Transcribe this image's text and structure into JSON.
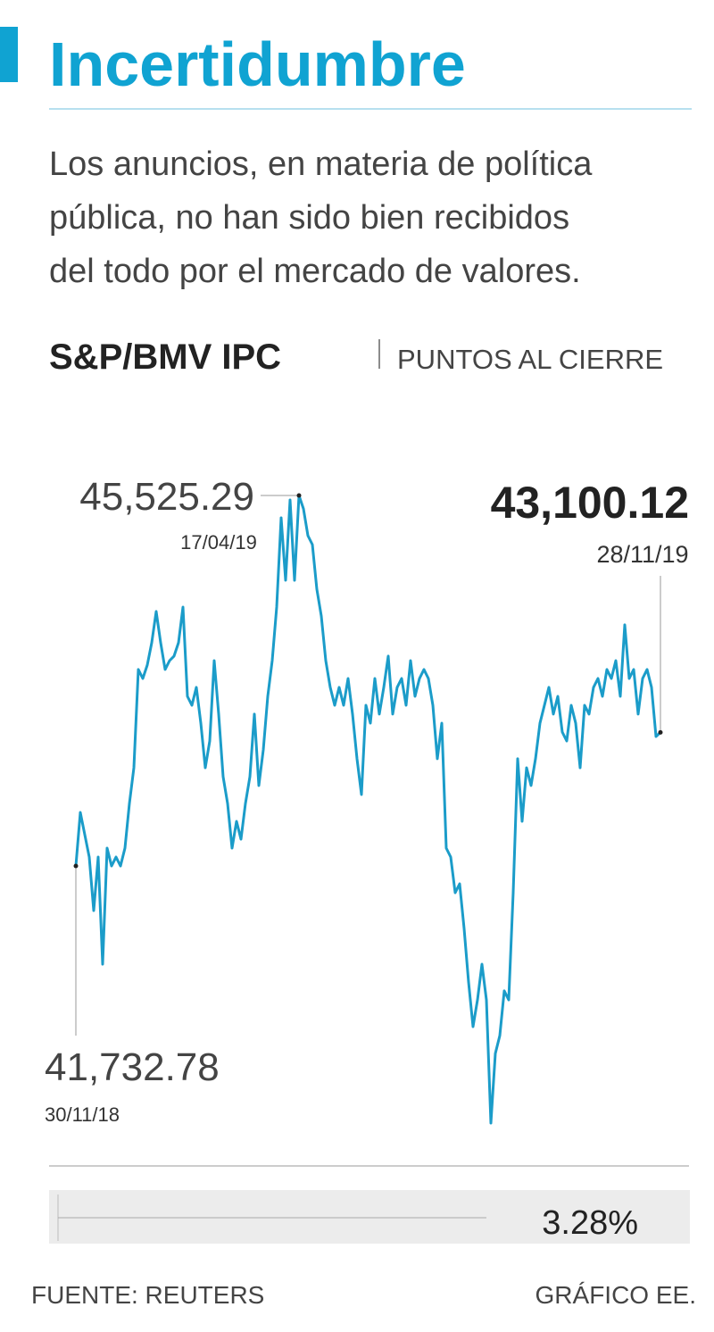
{
  "chart_data": {
    "type": "line",
    "title": "Incertidumbre",
    "subtitle": [
      "Los anuncios, en materia de política",
      "pública, no han sido bien recibidos",
      "del todo por el mercado de valores."
    ],
    "index_name": "S&P/BMV IPC",
    "unit_label": "PUNTOS AL CIERRE",
    "series": [
      {
        "color": "#1b9cc9",
        "values": [
          41732.78,
          42281,
          42053,
          41824,
          41276,
          41824,
          40728,
          41916,
          41733,
          41824,
          41733,
          41916,
          42373,
          42738,
          43744,
          43652,
          43789,
          44018,
          44338,
          44018,
          43744,
          43835,
          43881,
          44018,
          44383,
          43469,
          43378,
          43561,
          43195,
          42738,
          43012,
          43835,
          43287,
          42647,
          42373,
          41916,
          42190,
          42007,
          42373,
          42647,
          43287,
          42556,
          42921,
          43469,
          43835,
          44383,
          45297,
          44657,
          45480,
          44657,
          45525.29,
          45389,
          45114,
          45023,
          44566,
          44292,
          43835,
          43561,
          43378,
          43561,
          43378,
          43652,
          43287,
          42830,
          42464,
          43378,
          43195,
          43652,
          43287,
          43561,
          43881,
          43287,
          43561,
          43652,
          43378,
          43835,
          43469,
          43652,
          43744,
          43652,
          43378,
          42830,
          43195,
          41916,
          41824,
          41459,
          41550,
          41093,
          40545,
          40088,
          40362,
          40728,
          40362,
          39101,
          39814,
          39997,
          40454,
          40362,
          41459,
          42830,
          42190,
          42738,
          42556,
          42830,
          43195,
          43378,
          43561,
          43287,
          43469,
          43104,
          43012,
          43378,
          43195,
          42738,
          43378,
          43287,
          43561,
          43652,
          43469,
          43744,
          43652,
          43835,
          43469,
          44201,
          43652,
          43744,
          43287,
          43652,
          43744,
          43561,
          43058,
          43100.12
        ]
      }
    ],
    "annotations": [
      {
        "value": 41732.78,
        "label": "41,732.78",
        "date": "30/11/18"
      },
      {
        "value": 45525.29,
        "label": "45,525.29",
        "date": "17/04/19"
      },
      {
        "value": 43100.12,
        "label": "43,100.12",
        "date": "28/11/19"
      }
    ],
    "change": "3.28%",
    "source": "FUENTE: REUTERS",
    "credit": "GRÁFICO EE."
  }
}
